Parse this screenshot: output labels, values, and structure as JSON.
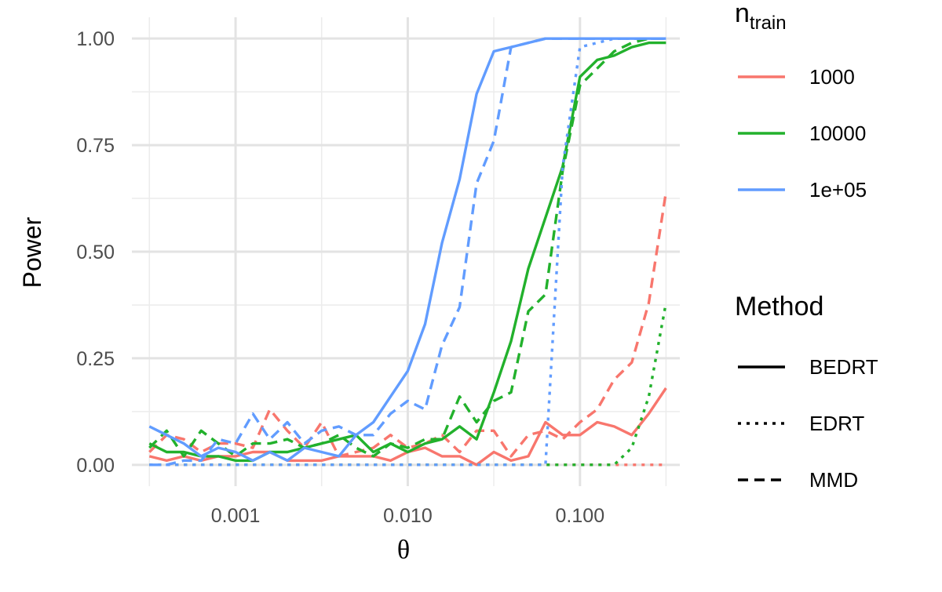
{
  "chart_data": {
    "type": "line",
    "xlabel": "θ",
    "ylabel": "Power",
    "x_scale": "log10",
    "xlim": [
      0.00025,
      0.38
    ],
    "ylim": [
      -0.05,
      1.05
    ],
    "x_ticks": [
      {
        "value": 0.001,
        "label": "0.001"
      },
      {
        "value": 0.01,
        "label": "0.010"
      },
      {
        "value": 0.1,
        "label": "0.100"
      }
    ],
    "y_ticks": [
      {
        "value": 0.0,
        "label": "0.00"
      },
      {
        "value": 0.25,
        "label": "0.25"
      },
      {
        "value": 0.5,
        "label": "0.50"
      },
      {
        "value": 0.75,
        "label": "0.75"
      },
      {
        "value": 1.0,
        "label": "1.00"
      }
    ],
    "grid": true,
    "legend_position": "right",
    "legend": {
      "color_title_main": "n",
      "color_title_sub": "train",
      "color_entries": [
        {
          "label": "1000",
          "color": "#F8766D"
        },
        {
          "label": "10000",
          "color": "#22B12C"
        },
        {
          "label": "1e+05",
          "color": "#619CFF"
        }
      ],
      "linetype_title": "Method",
      "linetype_entries": [
        {
          "label": "BEDRT",
          "dash": "solid"
        },
        {
          "label": "EDRT",
          "dash": "dotted"
        },
        {
          "label": "MMD",
          "dash": "dashed"
        }
      ]
    },
    "x": [
      0.000316,
      0.000398,
      0.000501,
      0.000631,
      0.000794,
      0.001,
      0.00126,
      0.00158,
      0.002,
      0.00251,
      0.00316,
      0.00398,
      0.00501,
      0.00631,
      0.00794,
      0.01,
      0.0126,
      0.0158,
      0.02,
      0.0251,
      0.0316,
      0.0398,
      0.0501,
      0.0631,
      0.0794,
      0.1,
      0.126,
      0.158,
      0.2,
      0.251,
      0.316
    ],
    "series": [
      {
        "color": "1000",
        "method": "BEDRT",
        "color_hex": "#F8766D",
        "dash": "solid",
        "values": [
          0.02,
          0.01,
          0.02,
          0.01,
          0.02,
          0.02,
          0.03,
          0.03,
          0.01,
          0.01,
          0.01,
          0.02,
          0.02,
          0.02,
          0.01,
          0.03,
          0.04,
          0.02,
          0.02,
          0.0,
          0.03,
          0.01,
          0.02,
          0.1,
          0.07,
          0.07,
          0.1,
          0.09,
          0.07,
          0.12,
          0.18
        ]
      },
      {
        "color": "1000",
        "method": "EDRT",
        "color_hex": "#F8766D",
        "dash": "dotted",
        "values": [
          0.0,
          0.0,
          0.0,
          0.0,
          0.0,
          0.0,
          0.0,
          0.0,
          0.0,
          0.0,
          0.0,
          0.0,
          0.0,
          0.0,
          0.0,
          0.0,
          0.0,
          0.0,
          0.0,
          0.0,
          0.0,
          0.0,
          0.0,
          0.0,
          0.0,
          0.0,
          0.0,
          0.0,
          0.0,
          0.0,
          0.0
        ]
      },
      {
        "color": "1000",
        "method": "MMD",
        "color_hex": "#F8766D",
        "dash": "dashed",
        "values": [
          0.03,
          0.07,
          0.06,
          0.03,
          0.05,
          0.05,
          0.04,
          0.13,
          0.08,
          0.04,
          0.1,
          0.02,
          0.03,
          0.04,
          0.07,
          0.04,
          0.05,
          0.07,
          0.03,
          0.08,
          0.08,
          0.02,
          0.07,
          0.08,
          0.06,
          0.1,
          0.13,
          0.2,
          0.24,
          0.38,
          0.64
        ]
      },
      {
        "color": "10000",
        "method": "BEDRT",
        "color_hex": "#22B12C",
        "dash": "solid",
        "values": [
          0.05,
          0.03,
          0.03,
          0.02,
          0.02,
          0.01,
          0.01,
          0.03,
          0.03,
          0.04,
          0.05,
          0.06,
          0.07,
          0.03,
          0.05,
          0.03,
          0.05,
          0.06,
          0.09,
          0.06,
          0.17,
          0.29,
          0.46,
          0.58,
          0.7,
          0.91,
          0.95,
          0.96,
          0.98,
          0.99,
          0.99
        ]
      },
      {
        "color": "10000",
        "method": "EDRT",
        "color_hex": "#22B12C",
        "dash": "dotted",
        "values": [
          0.0,
          0.0,
          0.0,
          0.0,
          0.0,
          0.0,
          0.0,
          0.0,
          0.0,
          0.0,
          0.0,
          0.0,
          0.0,
          0.0,
          0.0,
          0.0,
          0.0,
          0.0,
          0.0,
          0.0,
          0.0,
          0.0,
          0.0,
          0.0,
          0.0,
          0.0,
          0.0,
          0.0,
          0.04,
          0.16,
          0.38
        ]
      },
      {
        "color": "10000",
        "method": "MMD",
        "color_hex": "#22B12C",
        "dash": "dashed",
        "values": [
          0.04,
          0.08,
          0.02,
          0.08,
          0.05,
          0.02,
          0.05,
          0.05,
          0.06,
          0.04,
          0.05,
          0.07,
          0.04,
          0.02,
          0.05,
          0.04,
          0.06,
          0.06,
          0.16,
          0.1,
          0.15,
          0.17,
          0.36,
          0.4,
          0.69,
          0.89,
          0.93,
          0.97,
          0.99,
          1.0,
          1.0
        ]
      },
      {
        "color": "1e+05",
        "method": "BEDRT",
        "color_hex": "#619CFF",
        "dash": "solid",
        "values": [
          0.09,
          0.07,
          0.05,
          0.02,
          0.04,
          0.03,
          0.01,
          0.03,
          0.01,
          0.04,
          0.03,
          0.02,
          0.07,
          0.1,
          0.16,
          0.22,
          0.33,
          0.52,
          0.67,
          0.87,
          0.97,
          0.98,
          0.99,
          1.0,
          1.0,
          1.0,
          1.0,
          1.0,
          1.0,
          1.0,
          1.0
        ]
      },
      {
        "color": "1e+05",
        "method": "EDRT",
        "color_hex": "#619CFF",
        "dash": "dotted",
        "values": [
          0.0,
          0.0,
          0.0,
          0.0,
          0.0,
          0.0,
          0.0,
          0.0,
          0.0,
          0.0,
          0.0,
          0.0,
          0.0,
          0.0,
          0.0,
          0.0,
          0.0,
          0.0,
          0.0,
          0.0,
          0.0,
          0.0,
          0.0,
          0.0,
          0.7,
          0.98,
          0.99,
          1.0,
          1.0,
          1.0,
          1.0
        ]
      },
      {
        "color": "1e+05",
        "method": "MMD",
        "color_hex": "#619CFF",
        "dash": "dashed",
        "values": [
          0.0,
          0.0,
          0.01,
          0.01,
          0.06,
          0.05,
          0.12,
          0.06,
          0.1,
          0.05,
          0.08,
          0.09,
          0.07,
          0.07,
          0.12,
          0.15,
          0.13,
          0.28,
          0.37,
          0.66,
          0.76,
          0.98,
          0.99,
          1.0,
          1.0,
          1.0,
          1.0,
          1.0,
          1.0,
          1.0,
          1.0
        ]
      }
    ]
  }
}
